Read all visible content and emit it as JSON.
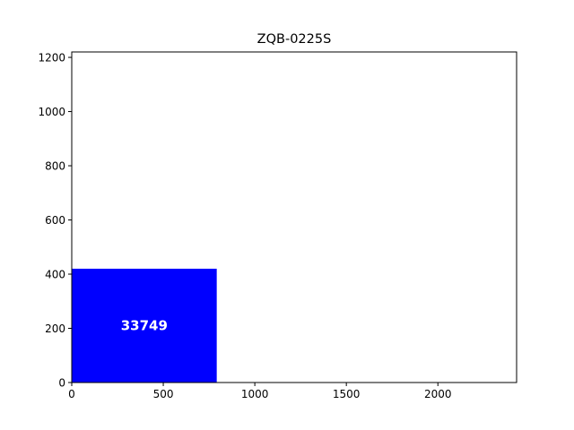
{
  "chart_data": {
    "type": "bar",
    "title": "ZQB-0225S",
    "xlabel": "",
    "ylabel": "",
    "xlim": [
      0,
      2430
    ],
    "ylim": [
      0,
      1220
    ],
    "xticks": [
      0,
      500,
      1000,
      1500,
      2000
    ],
    "yticks": [
      0,
      200,
      400,
      600,
      800,
      1000,
      1200
    ],
    "grid": false,
    "legend": "none",
    "bars": [
      {
        "x_start": 0,
        "x_end": 792,
        "height": 420,
        "label": "33749",
        "color": "#0000ff"
      }
    ]
  }
}
